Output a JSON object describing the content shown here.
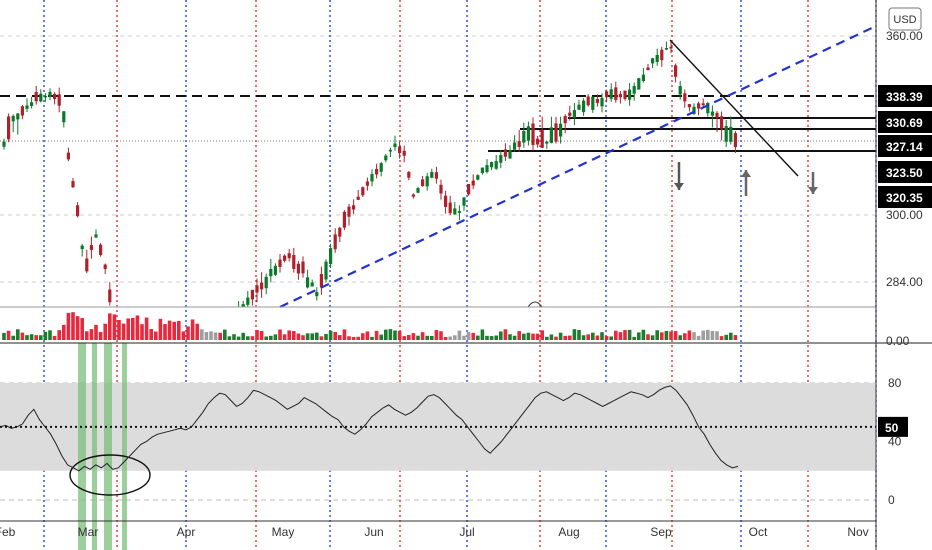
{
  "currency_label": "USD",
  "colors": {
    "up": "#0a7a2a",
    "down": "#b0202a",
    "vol_up": "#1d7d2f",
    "vol_down": "#e8283c",
    "vol_neutral": "#9e9e9e",
    "trend_blue": "#2233cc",
    "vline_red": "#e03030",
    "vline_blue": "#2244dd",
    "rsi_band": "#dcdcdc",
    "rsi_highlight": "#7cbf7c"
  },
  "chart_data": {
    "type": "candlestick",
    "x_labels": [
      "Feb",
      "Mar",
      "Apr",
      "May",
      "Jun",
      "Jul",
      "Aug",
      "Sep",
      "Oct",
      "Nov"
    ],
    "price_axis": {
      "ticks": [
        "360.00",
        "300.00",
        "284.00"
      ],
      "ylim": [
        272,
        366
      ]
    },
    "price_levels": [
      {
        "label": "338.39",
        "value": 338.39,
        "style": "dashed"
      },
      {
        "label": "330.69",
        "value": 330.69,
        "style": "solid"
      },
      {
        "label": "327.14",
        "value": 327.14,
        "style": "solid"
      },
      {
        "label": "323.50",
        "value": 323.5,
        "style": "none"
      },
      {
        "label": "320.35",
        "value": 320.35,
        "style": "none"
      }
    ],
    "current_price": 327.14,
    "vertical_markers": [
      {
        "month": "Feb",
        "offset_days": 5,
        "color": "blue"
      },
      {
        "month": "Mar",
        "offset_days": 3,
        "color": "red"
      },
      {
        "month": "Apr",
        "offset_days": 0,
        "color": "blue"
      },
      {
        "month": "Apr",
        "offset_days": 20,
        "color": "red"
      },
      {
        "month": "May",
        "offset_days": 15,
        "color": "blue"
      },
      {
        "month": "Jun",
        "offset_days": 5,
        "color": "red"
      },
      {
        "month": "Jul",
        "offset_days": 0,
        "color": "blue"
      },
      {
        "month": "Jul",
        "offset_days": 22,
        "color": "red"
      },
      {
        "month": "Aug",
        "offset_days": 10,
        "color": "blue"
      },
      {
        "month": "Sep",
        "offset_days": 1,
        "color": "red"
      },
      {
        "month": "Sep",
        "offset_days": 25,
        "color": "blue"
      },
      {
        "month": "Oct",
        "offset_days": 18,
        "color": "red"
      },
      {
        "month": "Nov",
        "offset_days": 5,
        "color": "blue"
      }
    ],
    "rsi": {
      "levels": [
        80,
        50,
        40,
        20,
        0
      ],
      "highlight_label": "50",
      "band": [
        20,
        80
      ],
      "values": [
        50,
        51,
        49,
        50,
        52,
        58,
        62,
        55,
        50,
        45,
        38,
        30,
        24,
        22,
        20,
        23,
        21,
        24,
        22,
        25,
        21,
        22,
        26,
        30,
        34,
        38,
        40,
        43,
        45,
        46,
        47,
        48,
        49,
        48,
        50,
        55,
        60,
        66,
        70,
        73,
        72,
        68,
        64,
        66,
        70,
        75,
        74,
        72,
        70,
        68,
        65,
        62,
        64,
        66,
        70,
        68,
        66,
        63,
        60,
        57,
        55,
        50,
        47,
        45,
        48,
        52,
        57,
        60,
        63,
        65,
        62,
        60,
        58,
        60,
        63,
        67,
        71,
        72,
        70,
        66,
        62,
        58,
        55,
        50,
        45,
        40,
        35,
        32,
        36,
        40,
        45,
        50,
        55,
        60,
        65,
        70,
        73,
        74,
        72,
        70,
        68,
        70,
        73,
        72,
        70,
        68,
        66,
        64,
        66,
        68,
        70,
        72,
        74,
        73,
        72,
        70,
        72,
        75,
        77,
        78,
        75,
        70,
        65,
        58,
        50,
        45,
        38,
        32,
        27,
        24,
        22,
        23
      ]
    },
    "annotations": [
      "falling trendline from Sep high",
      "rising dashed trendline",
      "oversold ellipse in Mar",
      "down arrow",
      "up arrow",
      "down arrow"
    ]
  }
}
